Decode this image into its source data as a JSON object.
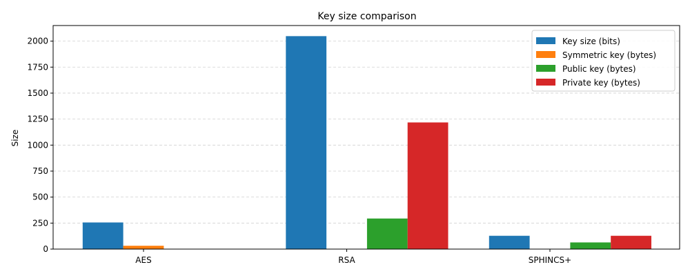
{
  "chart_data": {
    "type": "bar",
    "title": "Key size comparison",
    "xlabel": "",
    "ylabel": "Size",
    "categories": [
      "AES",
      "RSA",
      "SPHINCS+"
    ],
    "ylim": [
      0,
      2150
    ],
    "yticks": [
      0,
      250,
      500,
      750,
      1000,
      1250,
      1500,
      1750,
      2000
    ],
    "grid": "y-dashed",
    "legend_position": "top-right",
    "series": [
      {
        "name": "Key size (bits)",
        "color": "#1f77b4",
        "values": [
          256,
          2048,
          128
        ]
      },
      {
        "name": "Symmetric key (bytes)",
        "color": "#ff7f0e",
        "values": [
          32,
          0,
          0
        ]
      },
      {
        "name": "Public key (bytes)",
        "color": "#2ca02c",
        "values": [
          0,
          294,
          64
        ]
      },
      {
        "name": "Private key (bytes)",
        "color": "#d62728",
        "values": [
          0,
          1218,
          128
        ]
      }
    ]
  }
}
